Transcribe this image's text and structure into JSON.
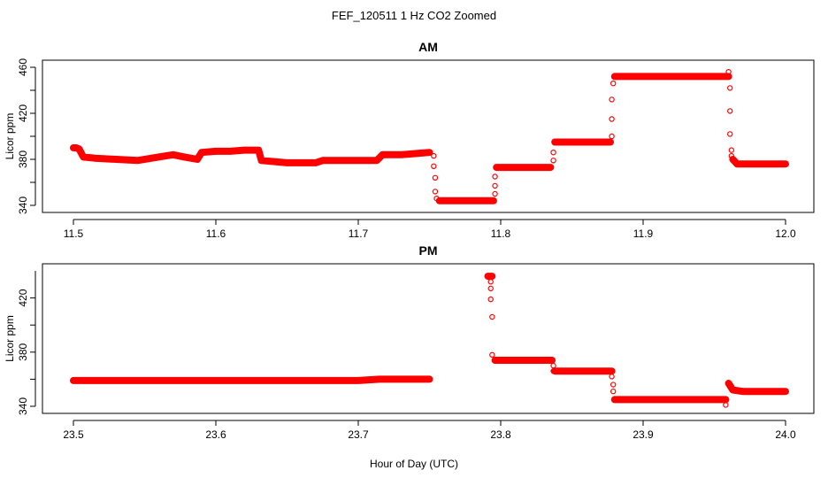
{
  "figure": {
    "suptitle": "FEF_120511  1 Hz CO2 Zoomed",
    "xlabel": "Hour of Day (UTC)",
    "marker_color": "#ff0000"
  },
  "chart_data": [
    {
      "type": "scatter",
      "title": "AM",
      "ylabel": "Licor ppm",
      "xlim": [
        11.5,
        12.0
      ],
      "ylim": [
        340,
        460
      ],
      "x_ticks": [
        "11.5",
        "11.6",
        "11.7",
        "11.8",
        "11.9",
        "12.0"
      ],
      "y_ticks": [
        "340",
        "380",
        "420",
        "460"
      ],
      "y_ticks_minor": [
        360,
        400,
        440
      ],
      "grid": false,
      "series": [
        {
          "color": "#ff0000",
          "dense_segments": [
            {
              "x": [
                11.5,
                11.502,
                11.504,
                11.507,
                11.515,
                11.53,
                11.545,
                11.555,
                11.565,
                11.57,
                11.578,
                11.587,
                11.59,
                11.6,
                11.61,
                11.62,
                11.63,
                11.632,
                11.65,
                11.67,
                11.675,
                11.69,
                11.713,
                11.717,
                11.73,
                11.74,
                11.75
              ],
              "y": [
                390,
                390,
                389,
                382,
                381,
                380,
                379,
                381,
                383,
                384,
                382,
                380,
                386,
                387,
                387,
                388,
                388,
                379,
                377,
                377,
                379,
                379,
                379,
                384,
                384,
                385,
                386
              ]
            },
            {
              "x": [
                11.757,
                11.795
              ],
              "y": [
                344,
                344
              ]
            },
            {
              "x": [
                11.797,
                11.835
              ],
              "y": [
                373,
                373
              ]
            },
            {
              "x": [
                11.838,
                11.877
              ],
              "y": [
                395,
                395
              ]
            },
            {
              "x": [
                11.88,
                11.96
              ],
              "y": [
                452,
                452
              ]
            },
            {
              "x": [
                11.963,
                11.966,
                12.0
              ],
              "y": [
                380,
                376,
                376
              ]
            }
          ],
          "transition_points": [
            {
              "x": 11.753,
              "y": 383
            },
            {
              "x": 11.753,
              "y": 374
            },
            {
              "x": 11.754,
              "y": 364
            },
            {
              "x": 11.754,
              "y": 352
            },
            {
              "x": 11.755,
              "y": 346
            },
            {
              "x": 11.796,
              "y": 350
            },
            {
              "x": 11.796,
              "y": 357
            },
            {
              "x": 11.796,
              "y": 365
            },
            {
              "x": 11.837,
              "y": 379
            },
            {
              "x": 11.837,
              "y": 386
            },
            {
              "x": 11.878,
              "y": 400
            },
            {
              "x": 11.878,
              "y": 415
            },
            {
              "x": 11.878,
              "y": 432
            },
            {
              "x": 11.879,
              "y": 446
            },
            {
              "x": 11.96,
              "y": 456
            },
            {
              "x": 11.961,
              "y": 442
            },
            {
              "x": 11.961,
              "y": 422
            },
            {
              "x": 11.961,
              "y": 402
            },
            {
              "x": 11.962,
              "y": 388
            },
            {
              "x": 11.962,
              "y": 383
            }
          ]
        }
      ]
    },
    {
      "type": "scatter",
      "title": "PM",
      "ylabel": "Licor ppm",
      "xlim": [
        23.5,
        24.0
      ],
      "ylim": [
        340,
        440
      ],
      "x_ticks": [
        "23.5",
        "23.6",
        "23.7",
        "23.8",
        "23.9",
        "24.0"
      ],
      "y_ticks": [
        "340",
        "380",
        "420"
      ],
      "y_ticks_minor": [
        360,
        400
      ],
      "grid": false,
      "series": [
        {
          "color": "#ff0000",
          "dense_segments": [
            {
              "x": [
                23.5,
                23.6,
                23.7,
                23.715,
                23.75
              ],
              "y": [
                359,
                359,
                359,
                360,
                360
              ]
            },
            {
              "x": [
                23.791,
                23.794
              ],
              "y": [
                436,
                436
              ]
            },
            {
              "x": [
                23.796,
                23.836
              ],
              "y": [
                374,
                374
              ]
            },
            {
              "x": [
                23.838,
                23.878
              ],
              "y": [
                366,
                366
              ]
            },
            {
              "x": [
                23.88,
                23.958
              ],
              "y": [
                345,
                345
              ]
            },
            {
              "x": [
                23.96,
                23.963,
                23.97,
                24.0
              ],
              "y": [
                357,
                352,
                351,
                351
              ]
            }
          ],
          "transition_points": [
            {
              "x": 23.793,
              "y": 432
            },
            {
              "x": 23.793,
              "y": 427
            },
            {
              "x": 23.793,
              "y": 419
            },
            {
              "x": 23.794,
              "y": 406
            },
            {
              "x": 23.794,
              "y": 378
            },
            {
              "x": 23.837,
              "y": 370
            },
            {
              "x": 23.837,
              "y": 366
            },
            {
              "x": 23.878,
              "y": 362
            },
            {
              "x": 23.879,
              "y": 356
            },
            {
              "x": 23.879,
              "y": 351
            },
            {
              "x": 23.958,
              "y": 341
            }
          ]
        }
      ]
    }
  ]
}
